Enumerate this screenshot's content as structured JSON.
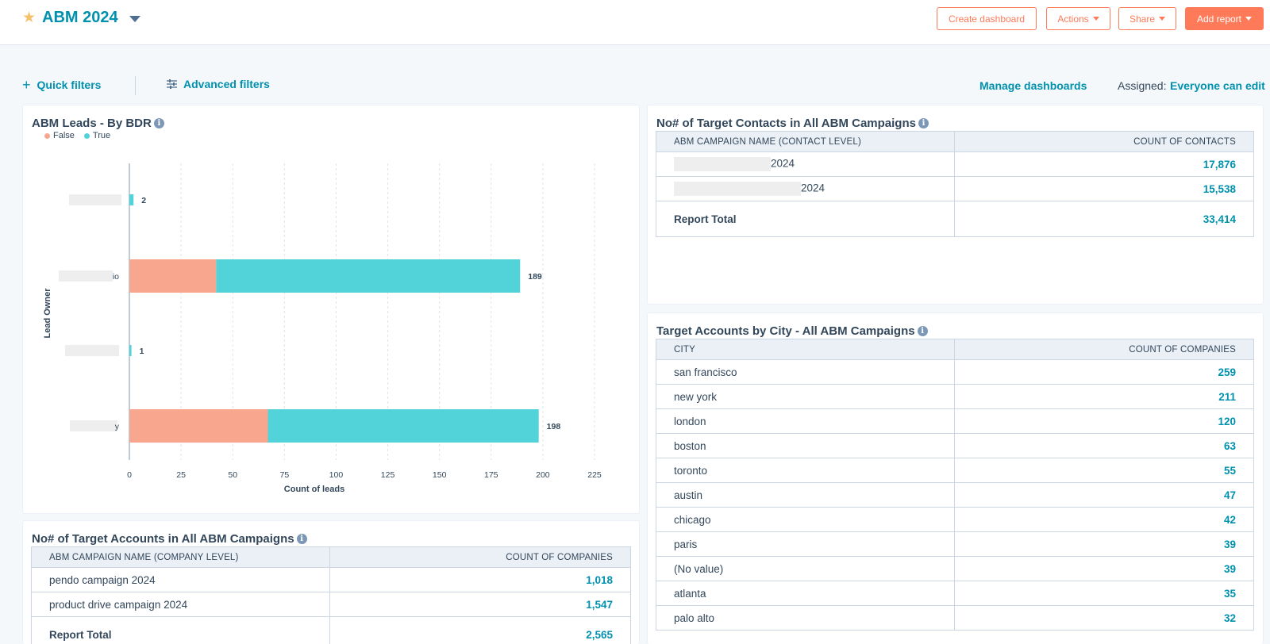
{
  "header": {
    "title": "ABM 2024",
    "buttons": {
      "create": "Create dashboard",
      "actions": "Actions",
      "share": "Share",
      "add_report": "Add report"
    }
  },
  "filters": {
    "quick": "Quick filters",
    "advanced": "Advanced filters",
    "manage": "Manage dashboards",
    "assigned_label": "Assigned:",
    "assigned_value": "Everyone can edit"
  },
  "leads_chart": {
    "title": "ABM Leads - By BDR",
    "chart_data": {
      "type": "bar",
      "orientation": "horizontal",
      "stacked": true,
      "xlabel": "Count of leads",
      "ylabel": "Lead Owner",
      "xlim": [
        0,
        225
      ],
      "xticks": [
        0,
        25,
        50,
        75,
        100,
        125,
        150,
        175,
        200,
        225
      ],
      "legend_position": "top-left",
      "categories": [
        "",
        "io",
        "",
        "y"
      ],
      "series": [
        {
          "name": "False",
          "color": "#f8a78e",
          "values": [
            0,
            42,
            0,
            67
          ]
        },
        {
          "name": "True",
          "color": "#51d3d9",
          "values": [
            2,
            147,
            1,
            131
          ]
        }
      ],
      "totals": [
        2,
        189,
        1,
        198
      ]
    }
  },
  "contacts_table": {
    "title": "No# of Target Contacts in All ABM Campaigns",
    "headers": [
      "ABM CAMPAIGN NAME (CONTACT LEVEL)",
      "COUNT OF CONTACTS"
    ],
    "rows": [
      {
        "name": "2024",
        "value": "17,876"
      },
      {
        "name": "2024",
        "value": "15,538"
      }
    ],
    "total_label": "Report Total",
    "total_value": "33,414"
  },
  "city_table": {
    "title": "Target Accounts by City - All ABM Campaigns",
    "headers": [
      "CITY",
      "COUNT OF COMPANIES"
    ],
    "rows": [
      {
        "name": "san francisco",
        "value": "259"
      },
      {
        "name": "new york",
        "value": "211"
      },
      {
        "name": "london",
        "value": "120"
      },
      {
        "name": "boston",
        "value": "63"
      },
      {
        "name": "toronto",
        "value": "55"
      },
      {
        "name": "austin",
        "value": "47"
      },
      {
        "name": "chicago",
        "value": "42"
      },
      {
        "name": "paris",
        "value": "39"
      },
      {
        "name": "(No value)",
        "value": "39"
      },
      {
        "name": "atlanta",
        "value": "35"
      },
      {
        "name": "palo alto",
        "value": "32"
      }
    ]
  },
  "accounts_table": {
    "title": "No# of Target Accounts in All ABM Campaigns",
    "headers": [
      "ABM CAMPAIGN NAME (COMPANY LEVEL)",
      "COUNT OF COMPANIES"
    ],
    "rows": [
      {
        "name": "pendo campaign 2024",
        "value": "1,018"
      },
      {
        "name": "product drive campaign 2024",
        "value": "1,547"
      }
    ],
    "total_label": "Report Total",
    "total_value": "2,565"
  }
}
